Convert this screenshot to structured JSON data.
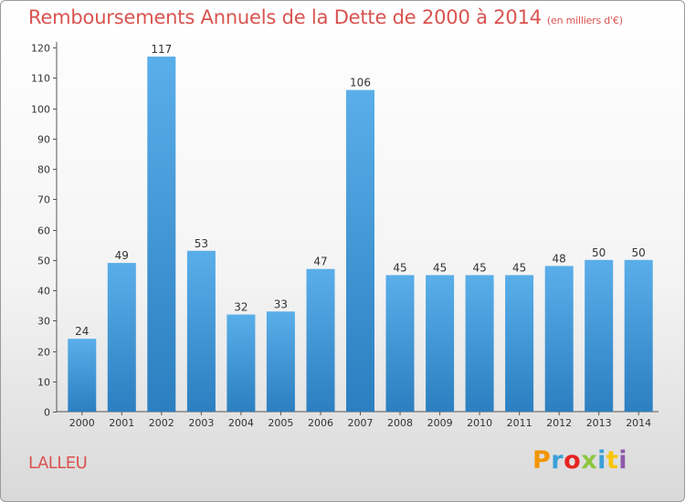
{
  "chart_data": {
    "type": "bar",
    "title": "Remboursements Annuels de la Dette de 2000 à 2014",
    "unit_note": "(en milliers d'€)",
    "categories": [
      "2000",
      "2001",
      "2002",
      "2003",
      "2004",
      "2005",
      "2006",
      "2007",
      "2008",
      "2009",
      "2010",
      "2011",
      "2012",
      "2013",
      "2014"
    ],
    "values": [
      24,
      49,
      117,
      53,
      32,
      33,
      47,
      106,
      45,
      45,
      45,
      45,
      48,
      50,
      50
    ],
    "ylim": [
      0,
      120
    ],
    "yticks": [
      0,
      10,
      20,
      30,
      40,
      50,
      60,
      70,
      80,
      90,
      100,
      110,
      120
    ],
    "grid": false,
    "bar_color_top": "#5aaee9",
    "bar_color_bottom": "#2c7fc0",
    "title_color": "#d9534f"
  },
  "footer": {
    "commune": "LALLEU",
    "logo_text": "Proxiti",
    "logo_colors": [
      "#f29400",
      "#3aa0d8",
      "#e52421",
      "#8cc63e",
      "#3aa0d8",
      "#f7c600",
      "#8e5aa8"
    ]
  }
}
